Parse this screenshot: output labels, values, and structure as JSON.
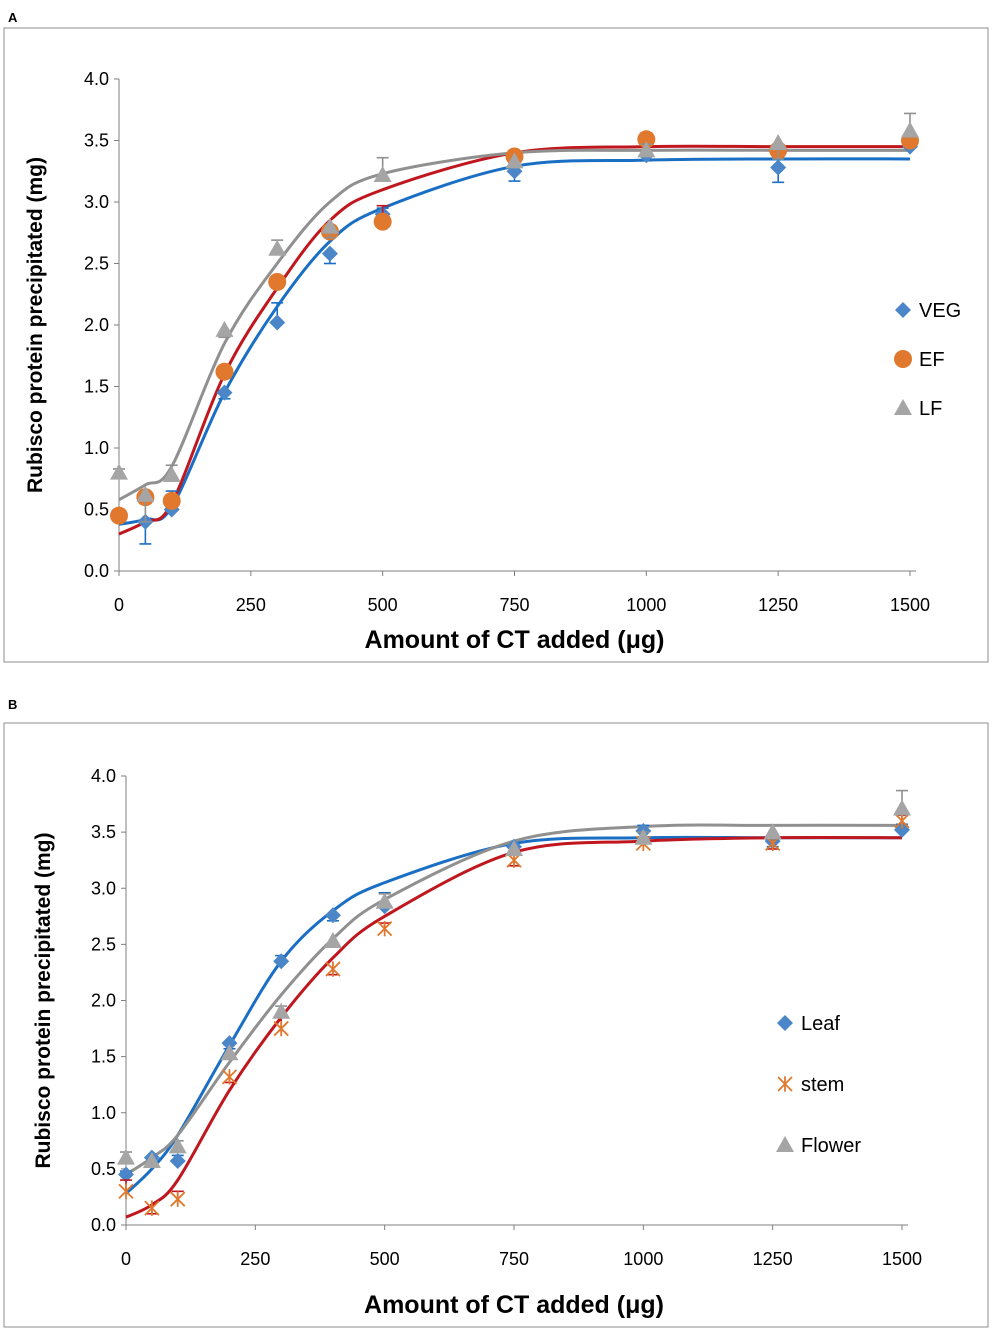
{
  "panels": [
    {
      "letter": "A"
    },
    {
      "letter": "B"
    }
  ],
  "chart_data": [
    {
      "type": "scatter",
      "panel": "A",
      "title": "",
      "xlabel": "Amount of CT added (μg)",
      "ylabel": "Rubisco protein precipitated (mg)",
      "xlim": [
        0,
        1500
      ],
      "ylim": [
        0,
        4.0
      ],
      "x_ticks": [
        0,
        250,
        500,
        750,
        1000,
        1250,
        1500
      ],
      "y_ticks": [
        "0.0",
        "0.5",
        "1.0",
        "1.5",
        "2.0",
        "2.5",
        "3.0",
        "3.5",
        "4.0"
      ],
      "x_positions": [
        0,
        1,
        2,
        3,
        4,
        5,
        6,
        7,
        8,
        9,
        10
      ],
      "x_values_ug": [
        0,
        50,
        100,
        200,
        300,
        400,
        500,
        750,
        1000,
        1250,
        1500
      ],
      "legend_position": "right",
      "series": [
        {
          "name": "VEG",
          "marker": "diamond",
          "color": "#4a86c8",
          "fit_color": "#1a6fc4",
          "values": [
            0.45,
            0.4,
            0.5,
            1.45,
            2.02,
            2.58,
            2.9,
            3.25,
            3.38,
            3.28,
            3.45
          ],
          "errors": [
            0.05,
            0.18,
            0.15,
            0.05,
            0.16,
            0.08,
            0.05,
            0.08,
            0.1,
            0.12,
            0.05
          ],
          "fit": [
            0.38,
            0.42,
            0.52,
            1.45,
            2.15,
            2.68,
            2.95,
            3.29,
            3.34,
            3.35,
            3.35
          ]
        },
        {
          "name": "EF",
          "marker": "circle",
          "color": "#e0782e",
          "fit_color": "#c0161d",
          "values": [
            0.45,
            0.6,
            0.57,
            1.62,
            2.35,
            2.76,
            2.84,
            3.37,
            3.51,
            3.42,
            3.5
          ],
          "errors": [
            0.03,
            0.05,
            0.05,
            0.05,
            0.05,
            0.05,
            0.13,
            0.05,
            0.05,
            0.05,
            0.05
          ],
          "fit": [
            0.3,
            0.4,
            0.55,
            1.6,
            2.3,
            2.85,
            3.1,
            3.4,
            3.45,
            3.45,
            3.45
          ]
        },
        {
          "name": "LF",
          "marker": "triangle",
          "color": "#a5a5a5",
          "fit_color": "#909090",
          "values": [
            0.8,
            0.62,
            0.78,
            1.96,
            2.62,
            2.8,
            3.22,
            3.33,
            3.42,
            3.48,
            3.58
          ],
          "errors": [
            0.03,
            0.22,
            0.08,
            0.06,
            0.07,
            0.09,
            0.14,
            0.05,
            0.05,
            0.13,
            0.14
          ],
          "fit": [
            0.58,
            0.7,
            0.85,
            1.85,
            2.5,
            3.0,
            3.23,
            3.4,
            3.42,
            3.42,
            3.42
          ]
        }
      ]
    },
    {
      "type": "scatter",
      "panel": "B",
      "title": "",
      "xlabel": "Amount of CT added (μg)",
      "ylabel": "Rubisco protein precipitated (mg)",
      "xlim": [
        0,
        1500
      ],
      "ylim": [
        0,
        4.0
      ],
      "x_ticks": [
        0,
        250,
        500,
        750,
        1000,
        1250,
        1500
      ],
      "y_ticks": [
        "0.0",
        "0.5",
        "1.0",
        "1.5",
        "2.0",
        "2.5",
        "3.0",
        "3.5",
        "4.0"
      ],
      "x_positions": [
        0,
        1,
        2,
        3,
        4,
        5,
        6,
        7,
        8,
        9,
        10
      ],
      "x_values_ug": [
        0,
        50,
        100,
        200,
        300,
        400,
        500,
        750,
        1000,
        1250,
        1500
      ],
      "legend_position": "right",
      "series": [
        {
          "name": "Leaf",
          "marker": "diamond",
          "color": "#4a86c8",
          "fit_color": "#1a6fc4",
          "values": [
            0.45,
            0.6,
            0.57,
            1.62,
            2.35,
            2.76,
            2.84,
            3.37,
            3.51,
            3.42,
            3.52
          ],
          "errors": [
            0.03,
            0.05,
            0.05,
            0.05,
            0.05,
            0.05,
            0.12,
            0.05,
            0.05,
            0.05,
            0.05
          ],
          "fit": [
            0.28,
            0.5,
            0.8,
            1.6,
            2.35,
            2.8,
            3.05,
            3.4,
            3.45,
            3.45,
            3.45
          ]
        },
        {
          "name": "stem",
          "marker": "asterisk",
          "color": "#e0782e",
          "fit_color": "#c0161d",
          "values": [
            0.3,
            0.15,
            0.23,
            1.32,
            1.75,
            2.28,
            2.64,
            3.25,
            3.4,
            3.4,
            3.6
          ],
          "errors": [
            0.1,
            0.05,
            0.07,
            0.05,
            0.1,
            0.05,
            0.05,
            0.05,
            0.05,
            0.05,
            0.05
          ],
          "fit": [
            0.07,
            0.18,
            0.4,
            1.2,
            1.85,
            2.38,
            2.75,
            3.32,
            3.42,
            3.45,
            3.45
          ]
        },
        {
          "name": "Flower",
          "marker": "triangle",
          "color": "#a5a5a5",
          "fit_color": "#909090",
          "values": [
            0.6,
            0.57,
            0.7,
            1.53,
            1.9,
            2.53,
            2.88,
            3.35,
            3.45,
            3.5,
            3.71
          ],
          "errors": [
            0.05,
            0.05,
            0.05,
            0.05,
            0.05,
            0.05,
            0.07,
            0.05,
            0.05,
            0.05,
            0.16
          ],
          "fit": [
            0.45,
            0.6,
            0.8,
            1.45,
            2.05,
            2.55,
            2.9,
            3.42,
            3.55,
            3.56,
            3.56
          ]
        }
      ]
    }
  ]
}
